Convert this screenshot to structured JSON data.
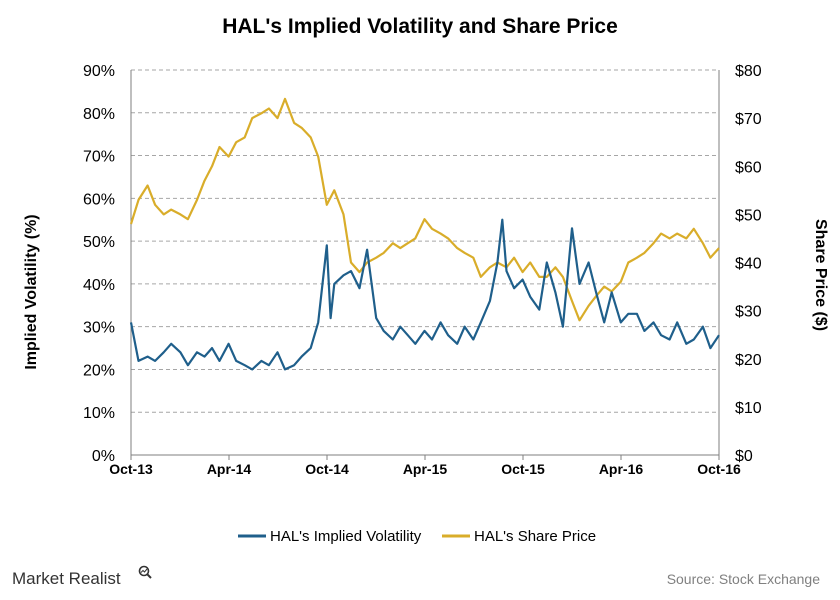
{
  "brand": {
    "name": "Market Realist",
    "icon": "magnifier-chart-icon"
  },
  "source": "Source: Stock Exchange",
  "colors": {
    "volatility": "#1f5f8b",
    "price": "#d9ad2a",
    "grid": "#a6a6a6"
  },
  "chart_data": {
    "type": "line",
    "title": "HAL's Implied Volatility and Share Price",
    "ylabel": "Implied Volatility (%)",
    "y2label": "Share Price ($)",
    "ylim": [
      0,
      90
    ],
    "y2lim": [
      0,
      80
    ],
    "yticks": [
      "0%",
      "10%",
      "20%",
      "30%",
      "40%",
      "50%",
      "60%",
      "70%",
      "80%",
      "90%"
    ],
    "y2ticks": [
      "$0",
      "$10",
      "$20",
      "$30",
      "$40",
      "$50",
      "$60",
      "$70",
      "$80"
    ],
    "xticks": [
      "Oct-13",
      "Apr-14",
      "Oct-14",
      "Apr-15",
      "Oct-15",
      "Apr-16",
      "Oct-16"
    ],
    "xlim": [
      "2013-10-01",
      "2016-10-01"
    ],
    "grid": "horizontal-dashed",
    "legend": "bottom",
    "series": [
      {
        "name": "HAL's Implied Volatility",
        "axis": "left",
        "x": [
          "2013-10-01",
          "2013-10-15",
          "2013-11-01",
          "2013-11-15",
          "2013-12-01",
          "2013-12-15",
          "2014-01-01",
          "2014-01-15",
          "2014-02-01",
          "2014-02-15",
          "2014-03-01",
          "2014-03-15",
          "2014-04-01",
          "2014-04-15",
          "2014-05-01",
          "2014-05-15",
          "2014-06-01",
          "2014-06-15",
          "2014-07-01",
          "2014-07-15",
          "2014-08-01",
          "2014-08-15",
          "2014-09-01",
          "2014-09-15",
          "2014-10-01",
          "2014-10-08",
          "2014-10-15",
          "2014-11-01",
          "2014-11-15",
          "2014-12-01",
          "2014-12-15",
          "2015-01-01",
          "2015-01-15",
          "2015-02-01",
          "2015-02-15",
          "2015-03-01",
          "2015-03-15",
          "2015-04-01",
          "2015-04-15",
          "2015-05-01",
          "2015-05-15",
          "2015-06-01",
          "2015-06-15",
          "2015-07-01",
          "2015-07-15",
          "2015-08-01",
          "2015-08-15",
          "2015-08-24",
          "2015-09-01",
          "2015-09-15",
          "2015-10-01",
          "2015-10-15",
          "2015-11-01",
          "2015-11-15",
          "2015-12-01",
          "2015-12-15",
          "2016-01-01",
          "2016-01-15",
          "2016-02-01",
          "2016-02-15",
          "2016-03-01",
          "2016-03-15",
          "2016-04-01",
          "2016-04-15",
          "2016-05-01",
          "2016-05-15",
          "2016-06-01",
          "2016-06-15",
          "2016-07-01",
          "2016-07-15",
          "2016-08-01",
          "2016-08-15",
          "2016-09-01",
          "2016-09-15",
          "2016-10-01"
        ],
        "values": [
          31,
          22,
          23,
          22,
          24,
          26,
          24,
          21,
          24,
          23,
          25,
          22,
          26,
          22,
          21,
          20,
          22,
          21,
          24,
          20,
          21,
          23,
          25,
          31,
          49,
          32,
          40,
          42,
          43,
          39,
          48,
          32,
          29,
          27,
          30,
          28,
          26,
          29,
          27,
          31,
          28,
          26,
          30,
          27,
          31,
          36,
          45,
          55,
          43,
          39,
          41,
          37,
          34,
          45,
          38,
          30,
          53,
          40,
          45,
          38,
          31,
          38,
          31,
          33,
          33,
          29,
          31,
          28,
          27,
          31,
          26,
          27,
          30,
          25,
          28
        ]
      },
      {
        "name": "HAL's Share Price",
        "axis": "right",
        "x": [
          "2013-10-01",
          "2013-10-15",
          "2013-11-01",
          "2013-11-15",
          "2013-12-01",
          "2013-12-15",
          "2014-01-01",
          "2014-01-15",
          "2014-02-01",
          "2014-02-15",
          "2014-03-01",
          "2014-03-15",
          "2014-04-01",
          "2014-04-15",
          "2014-05-01",
          "2014-05-15",
          "2014-06-01",
          "2014-06-15",
          "2014-07-01",
          "2014-07-15",
          "2014-08-01",
          "2014-08-15",
          "2014-09-01",
          "2014-09-15",
          "2014-10-01",
          "2014-10-15",
          "2014-11-01",
          "2014-11-15",
          "2014-12-01",
          "2014-12-15",
          "2015-01-01",
          "2015-01-15",
          "2015-02-01",
          "2015-02-15",
          "2015-03-01",
          "2015-03-15",
          "2015-04-01",
          "2015-04-15",
          "2015-05-01",
          "2015-05-15",
          "2015-06-01",
          "2015-06-15",
          "2015-07-01",
          "2015-07-15",
          "2015-08-01",
          "2015-08-15",
          "2015-09-01",
          "2015-09-15",
          "2015-10-01",
          "2015-10-15",
          "2015-11-01",
          "2015-11-15",
          "2015-12-01",
          "2015-12-15",
          "2016-01-01",
          "2016-01-15",
          "2016-02-01",
          "2016-02-15",
          "2016-03-01",
          "2016-03-15",
          "2016-04-01",
          "2016-04-15",
          "2016-05-01",
          "2016-05-15",
          "2016-06-01",
          "2016-06-15",
          "2016-07-01",
          "2016-07-15",
          "2016-08-01",
          "2016-08-15",
          "2016-09-01",
          "2016-09-15",
          "2016-10-01"
        ],
        "values": [
          48,
          53,
          56,
          52,
          50,
          51,
          50,
          49,
          53,
          57,
          60,
          64,
          62,
          65,
          66,
          70,
          71,
          72,
          70,
          74,
          69,
          68,
          66,
          62,
          52,
          55,
          50,
          40,
          38,
          40,
          41,
          42,
          44,
          43,
          44,
          45,
          49,
          47,
          46,
          45,
          43,
          42,
          41,
          37,
          39,
          40,
          39,
          41,
          38,
          40,
          37,
          37,
          39,
          37,
          32,
          28,
          31,
          33,
          35,
          34,
          36,
          40,
          41,
          42,
          44,
          46,
          45,
          46,
          45,
          47,
          44,
          41,
          43
        ]
      }
    ]
  }
}
